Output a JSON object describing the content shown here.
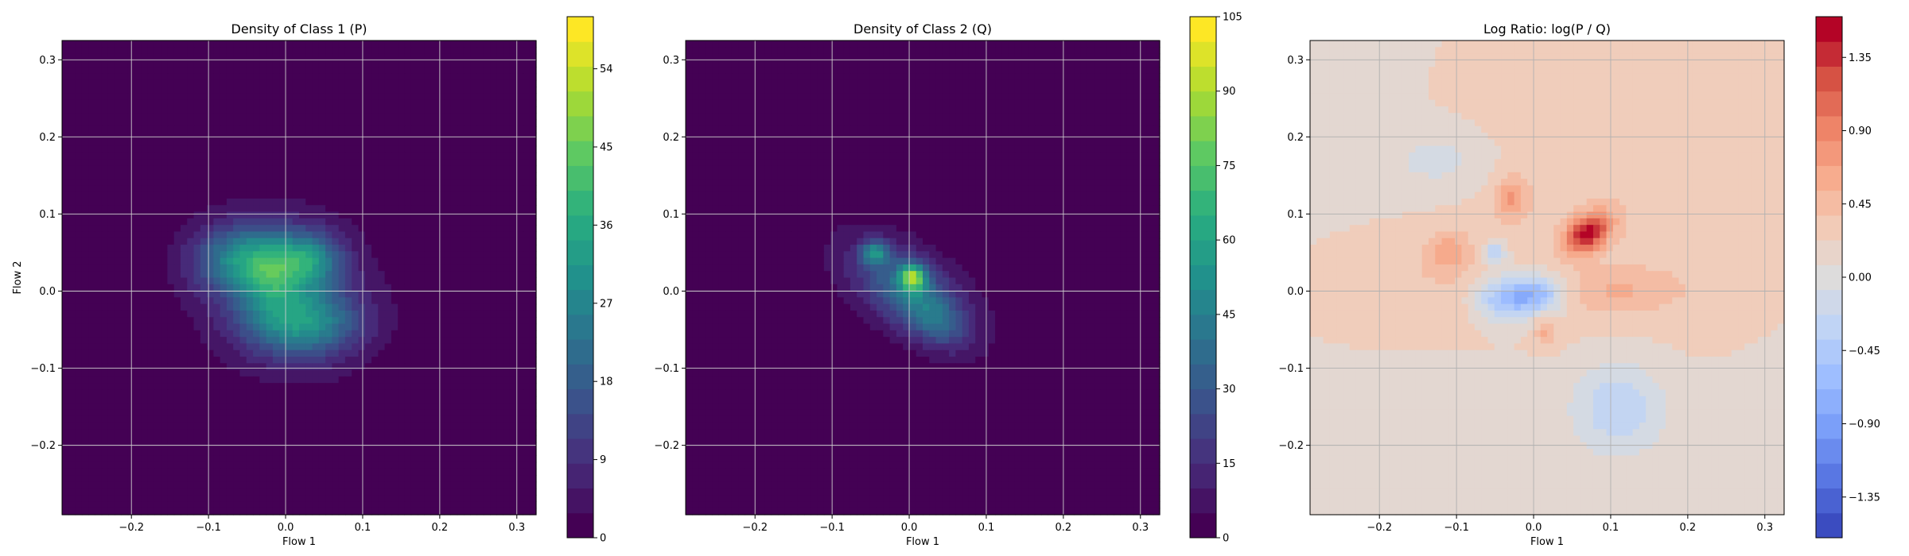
{
  "chart_data": [
    {
      "type": "heatmap",
      "title": "Density of Class 1 (P)",
      "xlabel": "Flow 1",
      "ylabel": "Flow 2",
      "xlim": [
        -0.29,
        0.325
      ],
      "ylim": [
        -0.29,
        0.325
      ],
      "xticks": [
        -0.2,
        -0.1,
        0.0,
        0.1,
        0.2,
        0.3
      ],
      "xtick_labels": [
        "−0.2",
        "−0.1",
        "0.0",
        "0.1",
        "0.2",
        "0.3"
      ],
      "yticks": [
        -0.2,
        -0.1,
        0.0,
        0.1,
        0.2,
        0.3
      ],
      "ytick_labels": [
        "−0.2",
        "−0.1",
        "0.0",
        "0.1",
        "0.2",
        "0.3"
      ],
      "grid": true,
      "colormap": "viridis",
      "colorbar": {
        "vmin": 0,
        "vmax": 60,
        "ticks": [
          0,
          9,
          18,
          27,
          36,
          45,
          54
        ],
        "tick_labels": [
          "0",
          "9",
          "18",
          "27",
          "36",
          "45",
          "54"
        ]
      },
      "blobs": [
        {
          "x": 0.0,
          "y": 0.0,
          "sx": 0.085,
          "sy": 0.075,
          "rot": -0.5,
          "amp": 10
        },
        {
          "x": -0.05,
          "y": 0.04,
          "sx": 0.045,
          "sy": 0.03,
          "rot": 0.0,
          "amp": 26
        },
        {
          "x": 0.03,
          "y": 0.04,
          "sx": 0.03,
          "sy": 0.025,
          "rot": 0.0,
          "amp": 22
        },
        {
          "x": 0.02,
          "y": -0.04,
          "sx": 0.05,
          "sy": 0.03,
          "rot": 0.0,
          "amp": 25
        },
        {
          "x": -0.02,
          "y": 0.01,
          "sx": 0.025,
          "sy": 0.03,
          "rot": 0.0,
          "amp": 12
        }
      ]
    },
    {
      "type": "heatmap",
      "title": "Density of Class 2 (Q)",
      "xlabel": "Flow 1",
      "ylabel": "",
      "xlim": [
        -0.29,
        0.325
      ],
      "ylim": [
        -0.29,
        0.325
      ],
      "xticks": [
        -0.2,
        -0.1,
        0.0,
        0.1,
        0.2,
        0.3
      ],
      "xtick_labels": [
        "−0.2",
        "−0.1",
        "0.0",
        "0.1",
        "0.2",
        "0.3"
      ],
      "yticks": [
        -0.2,
        -0.1,
        0.0,
        0.1,
        0.2,
        0.3
      ],
      "ytick_labels": [
        "−0.2",
        "−0.1",
        "0.0",
        "0.1",
        "0.2",
        "0.3"
      ],
      "grid": true,
      "colormap": "viridis",
      "colorbar": {
        "vmin": 0,
        "vmax": 105,
        "ticks": [
          0,
          15,
          30,
          45,
          60,
          75,
          90,
          105
        ],
        "tick_labels": [
          "0",
          "15",
          "30",
          "45",
          "60",
          "75",
          "90",
          "105"
        ]
      },
      "blobs": [
        {
          "x": 0.0,
          "y": 0.0,
          "sx": 0.09,
          "sy": 0.045,
          "rot": -0.6,
          "amp": 12
        },
        {
          "x": 0.0,
          "y": 0.0,
          "sx": 0.05,
          "sy": 0.028,
          "rot": -0.6,
          "amp": 28
        },
        {
          "x": 0.005,
          "y": 0.018,
          "sx": 0.012,
          "sy": 0.012,
          "rot": 0.0,
          "amp": 58
        },
        {
          "x": -0.045,
          "y": 0.05,
          "sx": 0.012,
          "sy": 0.01,
          "rot": 0.0,
          "amp": 40
        },
        {
          "x": 0.035,
          "y": -0.04,
          "sx": 0.03,
          "sy": 0.02,
          "rot": -0.6,
          "amp": 18
        }
      ]
    },
    {
      "type": "heatmap",
      "title": "Log Ratio: log(P / Q)",
      "xlabel": "Flow 1",
      "ylabel": "",
      "xlim": [
        -0.29,
        0.325
      ],
      "ylim": [
        -0.29,
        0.325
      ],
      "xticks": [
        -0.2,
        -0.1,
        0.0,
        0.1,
        0.2,
        0.3
      ],
      "xtick_labels": [
        "−0.2",
        "−0.1",
        "0.0",
        "0.1",
        "0.2",
        "0.3"
      ],
      "yticks": [
        -0.2,
        -0.1,
        0.0,
        0.1,
        0.2,
        0.3
      ],
      "ytick_labels": [
        "−0.2",
        "−0.1",
        "0.0",
        "0.1",
        "0.2",
        "0.3"
      ],
      "grid": true,
      "colormap": "coolwarm",
      "colorbar": {
        "vmin": -1.6,
        "vmax": 1.6,
        "ticks": [
          -1.35,
          -0.9,
          -0.45,
          0.0,
          0.45,
          0.9,
          1.35
        ],
        "tick_labels": [
          "−1.35",
          "−0.90",
          "−0.45",
          "0.00",
          "0.45",
          "0.90",
          "1.35"
        ]
      },
      "blobs": [
        {
          "x": 0.0,
          "y": 0.0,
          "sx": 1.0,
          "sy": 1.0,
          "rot": 0.0,
          "amp": 0.1
        },
        {
          "x": 0.15,
          "y": 0.2,
          "sx": 0.2,
          "sy": 0.2,
          "rot": 0.0,
          "amp": 0.25
        },
        {
          "x": -0.2,
          "y": 0.0,
          "sx": 0.1,
          "sy": 0.05,
          "rot": 0.0,
          "amp": 0.2
        },
        {
          "x": 0.07,
          "y": 0.075,
          "sx": 0.022,
          "sy": 0.015,
          "rot": 0.6,
          "amp": 1.3
        },
        {
          "x": 0.11,
          "y": 0.0,
          "sx": 0.06,
          "sy": 0.02,
          "rot": 0.0,
          "amp": 0.3
        },
        {
          "x": -0.04,
          "y": -0.01,
          "sx": 0.025,
          "sy": 0.02,
          "rot": 0.0,
          "amp": -0.7
        },
        {
          "x": 0.005,
          "y": -0.005,
          "sx": 0.025,
          "sy": 0.018,
          "rot": 0.0,
          "amp": -0.85
        },
        {
          "x": -0.05,
          "y": 0.05,
          "sx": 0.01,
          "sy": 0.01,
          "rot": 0.0,
          "amp": -0.6
        },
        {
          "x": 0.11,
          "y": -0.15,
          "sx": 0.04,
          "sy": 0.04,
          "rot": 0.0,
          "amp": -0.5
        },
        {
          "x": -0.12,
          "y": 0.17,
          "sx": 0.05,
          "sy": 0.03,
          "rot": 0.0,
          "amp": -0.25
        },
        {
          "x": -0.11,
          "y": 0.05,
          "sx": 0.02,
          "sy": 0.02,
          "rot": 0.0,
          "amp": 0.4
        },
        {
          "x": -0.03,
          "y": 0.12,
          "sx": 0.015,
          "sy": 0.02,
          "rot": 0.0,
          "amp": 0.5
        },
        {
          "x": 0.015,
          "y": -0.05,
          "sx": 0.01,
          "sy": 0.015,
          "rot": 0.0,
          "amp": 0.4
        }
      ]
    }
  ]
}
